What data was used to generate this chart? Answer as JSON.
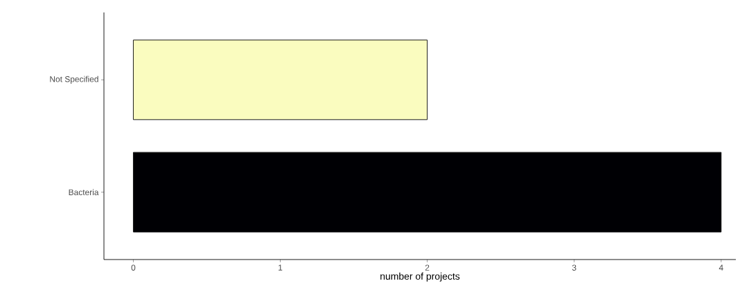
{
  "chart_data": {
    "type": "bar",
    "orientation": "horizontal",
    "xlabel": "number of projects",
    "categories": [
      "Not Specified",
      "Bacteria"
    ],
    "values": [
      2,
      4
    ],
    "colors": [
      "#fafcbf",
      "#000004"
    ],
    "xlim": [
      -0.2,
      4.1
    ],
    "xticks": [
      0,
      1,
      2,
      3,
      4
    ]
  }
}
